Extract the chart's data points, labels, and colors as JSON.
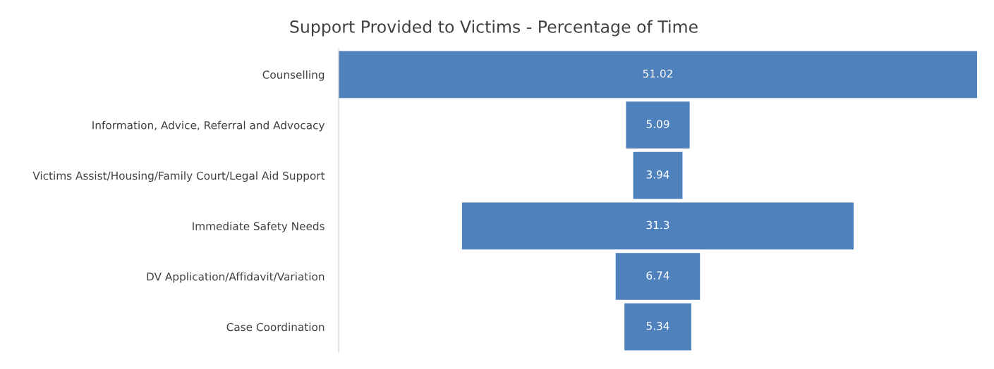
{
  "chart_data": {
    "type": "other",
    "title": "Support Provided to Victims - Percentage of Time",
    "categories": [
      "Counselling",
      "Information, Advice, Referral and Advocacy",
      "Victims Assist/Housing/Family Court/Legal Aid Support",
      "Immediate Safety Needs",
      "DV Application/Affidavit/Variation",
      "Case Coordination"
    ],
    "values": [
      51.02,
      5.09,
      3.94,
      31.3,
      6.74,
      5.34
    ],
    "color": "#4f81bd",
    "data_labels": true
  }
}
